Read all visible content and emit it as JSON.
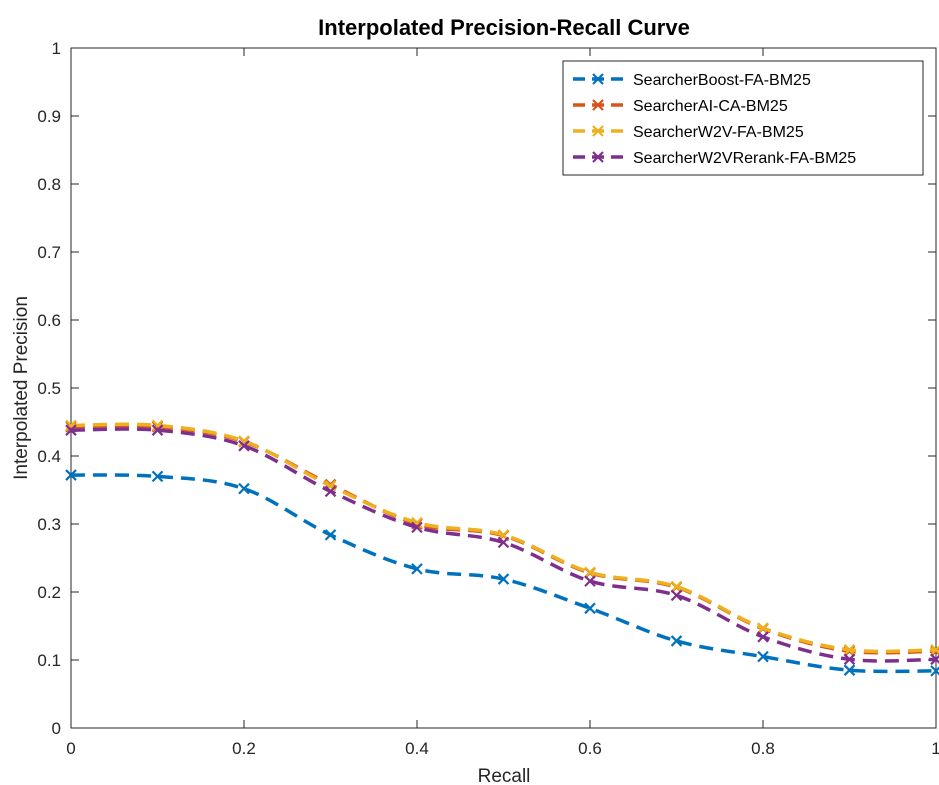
{
  "chart_data": {
    "type": "line",
    "title": "Interpolated Precision-Recall Curve",
    "xlabel": "Recall",
    "ylabel": "Interpolated Precision",
    "xlim": [
      0,
      1
    ],
    "ylim": [
      0,
      1
    ],
    "x_ticks": [
      0,
      0.2,
      0.4,
      0.6,
      0.8,
      1
    ],
    "y_ticks": [
      0,
      0.1,
      0.2,
      0.3,
      0.4,
      0.5,
      0.6,
      0.7,
      0.8,
      0.9,
      1
    ],
    "grid": false,
    "legend_position": "top-right",
    "x": [
      0,
      0.1,
      0.2,
      0.3,
      0.4,
      0.5,
      0.6,
      0.7,
      0.8,
      0.9,
      1.0
    ],
    "series": [
      {
        "name": "SearcherBoost-FA-BM25",
        "color": "#0072BD",
        "values": [
          0.372,
          0.37,
          0.352,
          0.284,
          0.234,
          0.219,
          0.176,
          0.128,
          0.105,
          0.085,
          0.084
        ]
      },
      {
        "name": "SearcherAI-CA-BM25",
        "color": "#D95319",
        "values": [
          0.443,
          0.443,
          0.421,
          0.358,
          0.3,
          0.283,
          0.228,
          0.207,
          0.146,
          0.113,
          0.113
        ]
      },
      {
        "name": "SearcherW2V-FA-BM25",
        "color": "#EDB120",
        "values": [
          0.445,
          0.445,
          0.422,
          0.356,
          0.302,
          0.284,
          0.229,
          0.208,
          0.147,
          0.115,
          0.115
        ]
      },
      {
        "name": "SearcherW2VRerank-FA-BM25",
        "color": "#7E2F8E",
        "values": [
          0.438,
          0.438,
          0.415,
          0.348,
          0.295,
          0.273,
          0.216,
          0.195,
          0.134,
          0.101,
          0.101
        ]
      }
    ]
  }
}
